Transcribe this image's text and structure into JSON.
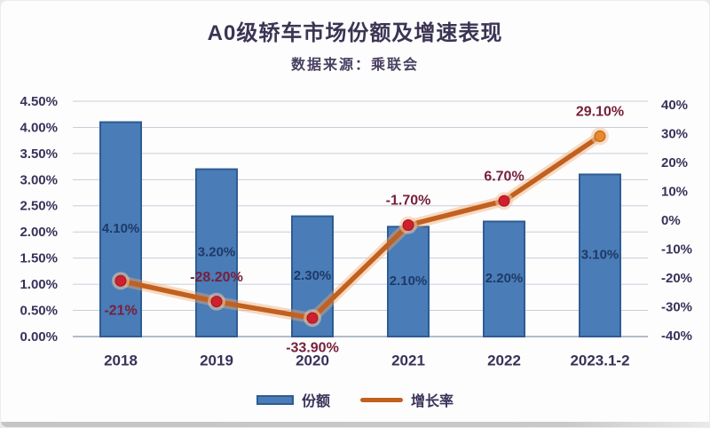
{
  "header": {
    "title": "A0级轿车市场份额及增速表现",
    "subtitle": "数据来源：乘联会"
  },
  "chart_data": {
    "type": "combo-bar-line",
    "categories": [
      "2018",
      "2019",
      "2020",
      "2021",
      "2022",
      "2023.1-2"
    ],
    "series": [
      {
        "name": "份额",
        "type": "bar",
        "axis": "left",
        "values": [
          4.1,
          3.2,
          2.3,
          2.1,
          2.2,
          3.1
        ],
        "labels": [
          "4.10%",
          "3.20%",
          "2.30%",
          "2.10%",
          "2.20%",
          "3.10%"
        ],
        "color": "#4a7cb8",
        "border_color": "#2e5c93",
        "label_color": "#1d3a66"
      },
      {
        "name": "增长率",
        "type": "line",
        "axis": "right",
        "values": [
          -21,
          -28.2,
          -33.9,
          -1.7,
          6.7,
          29.1
        ],
        "labels": [
          "-21%",
          "-28.20%",
          "-33.90%",
          "-1.70%",
          "6.70%",
          "29.10%"
        ],
        "label_side": [
          "below",
          "above",
          "below",
          "above",
          "above",
          "above"
        ],
        "color": "#c2601f",
        "glow_color": "rgba(238,170,110,0.42)",
        "marker_color": "#cf1f2e",
        "last_marker_color": "#e8872b",
        "marker_halo": "rgba(245,198,160,0.55)",
        "label_color": "#77203a"
      }
    ],
    "left_axis": {
      "ticks": [
        "4.50%",
        "4.00%",
        "3.50%",
        "3.00%",
        "2.50%",
        "2.00%",
        "1.50%",
        "1.00%",
        "0.50%",
        "0.00%"
      ],
      "min": 0,
      "max": 4.5
    },
    "right_axis": {
      "ticks": [
        "40%",
        "30%",
        "20%",
        "10%",
        "0%",
        "-10%",
        "-20%",
        "-30%",
        "-40%"
      ],
      "min": -40,
      "max": 40
    },
    "grid": true,
    "grid_color": "#c9cdd6",
    "axis_line_color": "#9aa7b5",
    "axis_text_color": "#3a3158",
    "legend_position": "bottom"
  },
  "legend": {
    "items": [
      {
        "label": "份额"
      },
      {
        "label": "增长率"
      }
    ]
  }
}
